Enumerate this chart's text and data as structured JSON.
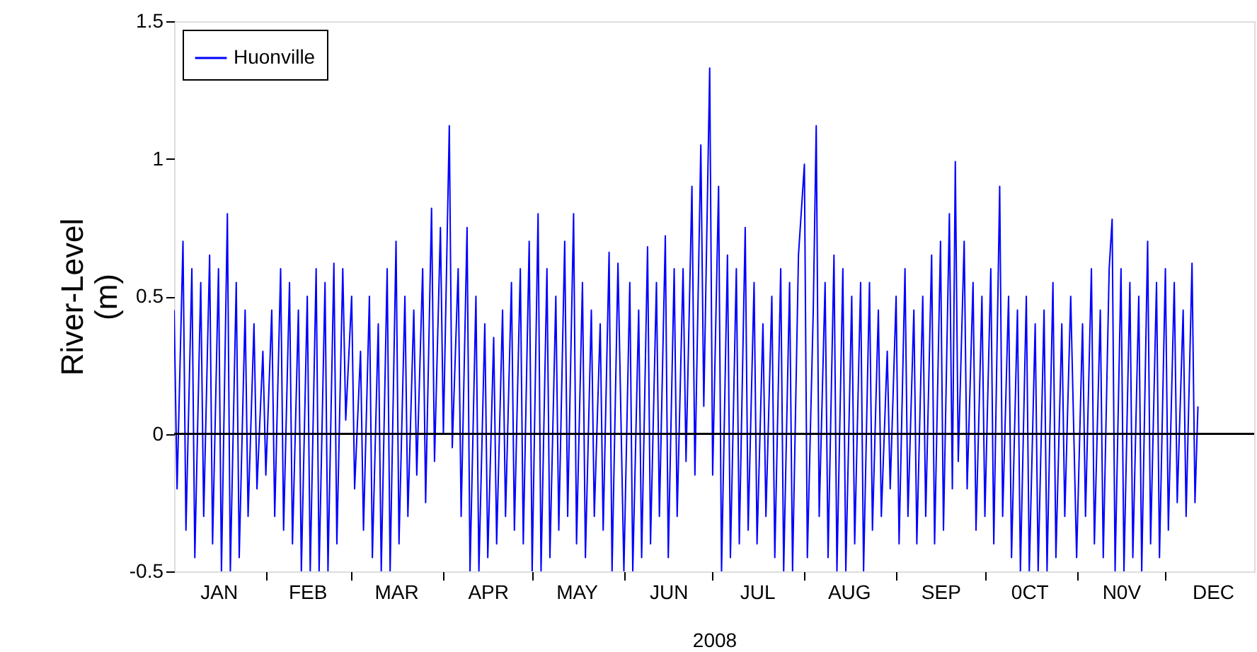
{
  "chart_data": {
    "type": "line",
    "xlabel": "2008",
    "ylabel": "River-Level (m)",
    "x": [
      "2008-01-01",
      "2008-01-02",
      "2008-01-04",
      "2008-01-05",
      "2008-01-07",
      "2008-01-08",
      "2008-01-10",
      "2008-01-11",
      "2008-01-13",
      "2008-01-14",
      "2008-01-16",
      "2008-01-17",
      "2008-01-19",
      "2008-01-20",
      "2008-01-22",
      "2008-01-23",
      "2008-01-25",
      "2008-01-26",
      "2008-01-28",
      "2008-01-29",
      "2008-01-31",
      "2008-02-01",
      "2008-02-03",
      "2008-02-04",
      "2008-02-06",
      "2008-02-07",
      "2008-02-09",
      "2008-02-10",
      "2008-02-12",
      "2008-02-13",
      "2008-02-15",
      "2008-02-16",
      "2008-02-18",
      "2008-02-19",
      "2008-02-21",
      "2008-02-22",
      "2008-02-24",
      "2008-02-25",
      "2008-02-27",
      "2008-02-28",
      "2008-03-01",
      "2008-03-02",
      "2008-03-04",
      "2008-03-05",
      "2008-03-07",
      "2008-03-08",
      "2008-03-10",
      "2008-03-11",
      "2008-03-13",
      "2008-03-14",
      "2008-03-16",
      "2008-03-17",
      "2008-03-19",
      "2008-03-20",
      "2008-03-22",
      "2008-03-23",
      "2008-03-25",
      "2008-03-26",
      "2008-03-28",
      "2008-03-29",
      "2008-03-31",
      "2008-04-01",
      "2008-04-03",
      "2008-04-04",
      "2008-04-06",
      "2008-04-07",
      "2008-04-09",
      "2008-04-10",
      "2008-04-12",
      "2008-04-13",
      "2008-04-15",
      "2008-04-16",
      "2008-04-18",
      "2008-04-19",
      "2008-04-21",
      "2008-04-22",
      "2008-04-24",
      "2008-04-25",
      "2008-04-27",
      "2008-04-28",
      "2008-04-30",
      "2008-05-01",
      "2008-05-03",
      "2008-05-04",
      "2008-05-06",
      "2008-05-07",
      "2008-05-09",
      "2008-05-10",
      "2008-05-12",
      "2008-05-13",
      "2008-05-15",
      "2008-05-16",
      "2008-05-18",
      "2008-05-19",
      "2008-05-21",
      "2008-05-22",
      "2008-05-24",
      "2008-05-25",
      "2008-05-27",
      "2008-05-28",
      "2008-05-30",
      "2008-06-01",
      "2008-06-03",
      "2008-06-04",
      "2008-06-06",
      "2008-06-07",
      "2008-06-09",
      "2008-06-10",
      "2008-06-12",
      "2008-06-13",
      "2008-06-15",
      "2008-06-16",
      "2008-06-18",
      "2008-06-19",
      "2008-06-21",
      "2008-06-22",
      "2008-06-24",
      "2008-06-25",
      "2008-06-27",
      "2008-06-28",
      "2008-06-30",
      "2008-07-01",
      "2008-07-03",
      "2008-07-04",
      "2008-07-06",
      "2008-07-07",
      "2008-07-09",
      "2008-07-10",
      "2008-07-12",
      "2008-07-13",
      "2008-07-15",
      "2008-07-16",
      "2008-07-18",
      "2008-07-19",
      "2008-07-21",
      "2008-07-22",
      "2008-07-24",
      "2008-07-25",
      "2008-07-27",
      "2008-07-28",
      "2008-07-30",
      "2008-08-01",
      "2008-08-02",
      "2008-08-04",
      "2008-08-05",
      "2008-08-06",
      "2008-08-08",
      "2008-08-09",
      "2008-08-11",
      "2008-08-12",
      "2008-08-14",
      "2008-08-15",
      "2008-08-17",
      "2008-08-18",
      "2008-08-20",
      "2008-08-21",
      "2008-08-23",
      "2008-08-24",
      "2008-08-26",
      "2008-08-27",
      "2008-08-29",
      "2008-08-30",
      "2008-09-01",
      "2008-09-02",
      "2008-09-04",
      "2008-09-05",
      "2008-09-07",
      "2008-09-08",
      "2008-09-10",
      "2008-09-11",
      "2008-09-13",
      "2008-09-14",
      "2008-09-16",
      "2008-09-17",
      "2008-09-19",
      "2008-09-20",
      "2008-09-21",
      "2008-09-22",
      "2008-09-24",
      "2008-09-25",
      "2008-09-27",
      "2008-09-28",
      "2008-09-30",
      "2008-10-01",
      "2008-10-03",
      "2008-10-04",
      "2008-10-06",
      "2008-10-07",
      "2008-10-09",
      "2008-10-10",
      "2008-10-12",
      "2008-10-13",
      "2008-10-15",
      "2008-10-16",
      "2008-10-18",
      "2008-10-19",
      "2008-10-21",
      "2008-10-22",
      "2008-10-24",
      "2008-10-25",
      "2008-10-27",
      "2008-10-28",
      "2008-10-30",
      "2008-11-01",
      "2008-11-03",
      "2008-11-04",
      "2008-11-06",
      "2008-11-07",
      "2008-11-09",
      "2008-11-10",
      "2008-11-12",
      "2008-11-13",
      "2008-11-14",
      "2008-11-16",
      "2008-11-17",
      "2008-11-19",
      "2008-11-20",
      "2008-11-22",
      "2008-11-23",
      "2008-11-25",
      "2008-11-26",
      "2008-11-28",
      "2008-11-29",
      "2008-12-01",
      "2008-12-02",
      "2008-12-04",
      "2008-12-05",
      "2008-12-07",
      "2008-12-08",
      "2008-12-10",
      "2008-12-11",
      "2008-12-12"
    ],
    "series": [
      {
        "name": "Huonville",
        "color": "#0000ff",
        "values": [
          0.45,
          -0.2,
          0.7,
          -0.35,
          0.6,
          -0.45,
          0.55,
          -0.3,
          0.65,
          -0.4,
          0.6,
          -0.5,
          0.8,
          -0.5,
          0.55,
          -0.45,
          0.45,
          -0.3,
          0.4,
          -0.2,
          0.3,
          -0.15,
          0.45,
          -0.3,
          0.6,
          -0.35,
          0.55,
          -0.4,
          0.45,
          -0.5,
          0.5,
          -0.5,
          0.6,
          -0.5,
          0.55,
          -0.5,
          0.62,
          -0.4,
          0.6,
          0.05,
          0.5,
          -0.2,
          0.3,
          -0.35,
          0.5,
          -0.45,
          0.4,
          -0.5,
          0.6,
          -0.5,
          0.7,
          -0.4,
          0.5,
          -0.3,
          0.45,
          -0.15,
          0.6,
          -0.25,
          0.82,
          -0.1,
          0.75,
          0.0,
          1.12,
          -0.05,
          0.6,
          -0.3,
          0.75,
          -0.5,
          0.5,
          -0.5,
          0.4,
          -0.45,
          0.35,
          -0.4,
          0.45,
          -0.3,
          0.55,
          -0.35,
          0.6,
          -0.4,
          0.7,
          -0.5,
          0.8,
          -0.5,
          0.6,
          -0.45,
          0.5,
          -0.35,
          0.7,
          -0.3,
          0.8,
          -0.4,
          0.55,
          -0.45,
          0.45,
          -0.3,
          0.4,
          -0.35,
          0.66,
          -0.5,
          0.62,
          -0.5,
          0.55,
          -0.5,
          0.45,
          -0.45,
          0.68,
          -0.4,
          0.55,
          -0.3,
          0.72,
          -0.45,
          0.6,
          -0.3,
          0.6,
          -0.1,
          0.9,
          -0.15,
          1.05,
          0.1,
          1.33,
          -0.15,
          0.9,
          -0.5,
          0.65,
          -0.45,
          0.6,
          -0.4,
          0.75,
          -0.35,
          0.55,
          -0.4,
          0.4,
          -0.3,
          0.5,
          -0.45,
          0.6,
          -0.5,
          0.55,
          -0.5,
          0.65,
          0.98,
          -0.45,
          0.45,
          1.12,
          -0.3,
          0.55,
          -0.45,
          0.65,
          -0.5,
          0.6,
          -0.5,
          0.5,
          -0.4,
          0.55,
          -0.5,
          0.55,
          -0.35,
          0.45,
          -0.3,
          0.3,
          -0.2,
          0.5,
          -0.4,
          0.6,
          -0.3,
          0.45,
          -0.4,
          0.5,
          -0.3,
          0.65,
          -0.4,
          0.7,
          -0.35,
          0.8,
          -0.2,
          0.99,
          -0.1,
          0.7,
          -0.2,
          0.55,
          -0.35,
          0.5,
          -0.3,
          0.6,
          -0.4,
          0.9,
          -0.3,
          0.5,
          -0.45,
          0.45,
          -0.5,
          0.5,
          -0.5,
          0.4,
          -0.5,
          0.45,
          -0.5,
          0.55,
          -0.45,
          0.4,
          -0.3,
          0.5,
          -0.45,
          0.4,
          -0.3,
          0.6,
          -0.4,
          0.45,
          -0.45,
          0.6,
          0.78,
          -0.5,
          0.6,
          -0.5,
          0.55,
          -0.45,
          0.5,
          -0.5,
          0.7,
          -0.4,
          0.55,
          -0.45,
          0.6,
          -0.35,
          0.55,
          -0.25,
          0.45,
          -0.3,
          0.62,
          -0.25,
          0.1
        ]
      }
    ],
    "xlim": [
      "2008-01-01",
      "2008-12-31"
    ],
    "xticks": [
      {
        "value": "2008-01-16",
        "label": "JAN"
      },
      {
        "value": "2008-02-01",
        "label": null
      },
      {
        "value": "2008-02-15",
        "label": "FEB"
      },
      {
        "value": "2008-03-01",
        "label": null
      },
      {
        "value": "2008-03-16",
        "label": "MAR"
      },
      {
        "value": "2008-04-01",
        "label": null
      },
      {
        "value": "2008-04-16",
        "label": "APR"
      },
      {
        "value": "2008-05-01",
        "label": null
      },
      {
        "value": "2008-05-16",
        "label": "MAY"
      },
      {
        "value": "2008-06-01",
        "label": null
      },
      {
        "value": "2008-06-16",
        "label": "JUN"
      },
      {
        "value": "2008-07-01",
        "label": null
      },
      {
        "value": "2008-07-16",
        "label": "JUL"
      },
      {
        "value": "2008-08-01",
        "label": null
      },
      {
        "value": "2008-08-16",
        "label": "AUG"
      },
      {
        "value": "2008-09-01",
        "label": null
      },
      {
        "value": "2008-09-16",
        "label": "SEP"
      },
      {
        "value": "2008-10-01",
        "label": null
      },
      {
        "value": "2008-10-16",
        "label": "0CT"
      },
      {
        "value": "2008-11-01",
        "label": null
      },
      {
        "value": "2008-11-16",
        "label": "N0V"
      },
      {
        "value": "2008-12-01",
        "label": null
      },
      {
        "value": "2008-12-17",
        "label": "DEC"
      }
    ],
    "ylim": [
      -0.5,
      1.5
    ],
    "yticks": [
      -0.5,
      0,
      0.5,
      1,
      1.5
    ],
    "ref_lines": [
      {
        "axis": "y",
        "value": 0,
        "color": "#000000"
      }
    ],
    "grid": false,
    "legend": "top left",
    "line_style": "solid",
    "marker": "none"
  }
}
